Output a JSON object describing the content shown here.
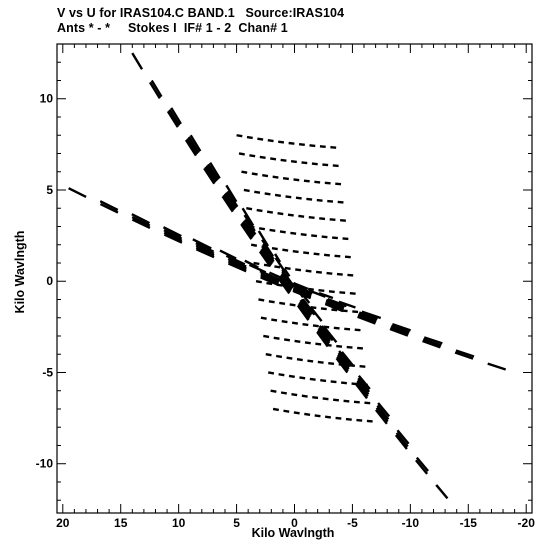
{
  "chart_data": {
    "type": "scatter",
    "title_line1": "V vs U for IRAS104.C BAND.1   Source:IRAS104",
    "title_line2": "Ants * - *     Stokes I  IF# 1 - 2  Chan# 1",
    "xlabel": "Kilo Wavlngth",
    "ylabel": "Kilo Wavlngth",
    "x_axis": {
      "reversed": true,
      "min": -20.5,
      "max": 20.5,
      "ticks": [
        20,
        15,
        10,
        5,
        0,
        -5,
        -10,
        -15,
        -20
      ],
      "tick_labels": [
        "20",
        "15",
        "10",
        "5",
        "0",
        "-5",
        "-10",
        "-15",
        "-20"
      ]
    },
    "y_axis": {
      "min": -12.7,
      "max": 13.0,
      "ticks": [
        10,
        5,
        0,
        -5,
        -10
      ],
      "tick_labels": [
        "10",
        "5",
        "0",
        "-5",
        "-10"
      ]
    },
    "grid": false,
    "uv_tracks": {
      "family_a": {
        "description": "tracks running upper-left to lower-right",
        "start": [
          14,
          12.5
        ],
        "end": [
          -14,
          -12.5
        ],
        "length_scales": [
          1.0,
          0.88,
          0.76,
          0.64,
          0.52,
          0.42,
          0.32,
          0.22,
          0.12
        ],
        "bend": 1.6,
        "segments_per_track": 17
      },
      "family_b": {
        "description": "tracks running left to right, shallow",
        "start": [
          19.5,
          5.1
        ],
        "end": [
          -19.5,
          -5.1
        ],
        "length_scales": [
          1.0,
          0.86,
          0.72,
          0.58,
          0.45,
          0.33,
          0.22
        ],
        "bend": 1.1,
        "segments_per_track": 14
      },
      "family_c": {
        "description": "near-horizontal tracks stacked vertically",
        "start": [
          5,
          8.0
        ],
        "end": [
          -4,
          7.3
        ],
        "y_offsets": [
          0,
          -1.0,
          -2.0,
          -3.0,
          -4.0,
          -5.0,
          -6.0,
          -7.0,
          -8.0,
          -9.0,
          -10.0,
          -11.0,
          -12.0,
          -13.0,
          -14.0,
          -15.0
        ],
        "x_shift_per_row": -0.6,
        "segments_per_track": 10
      }
    }
  }
}
